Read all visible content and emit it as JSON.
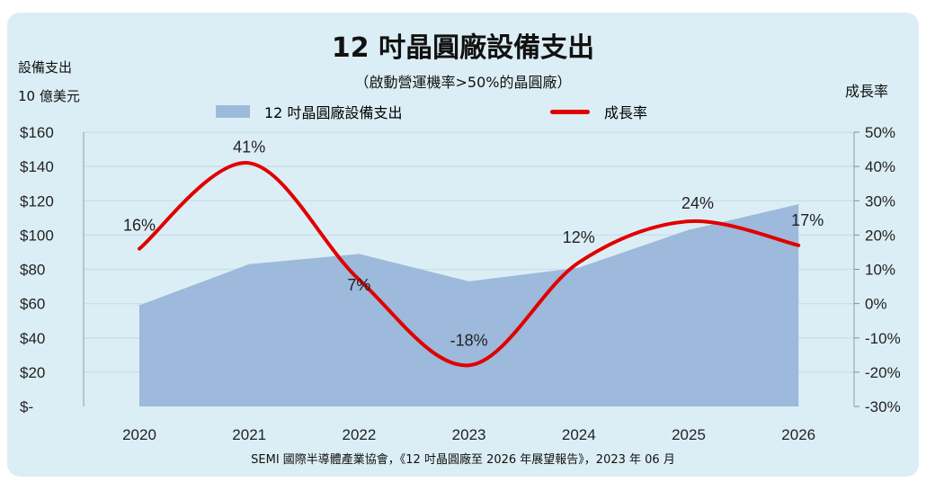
{
  "chart_data": {
    "type": "area+line",
    "title": "12 吋晶圓廠設備支出",
    "subtitle": "（啟動營運機率>50%的晶圓廠）",
    "ylabel_left": [
      "設備支出",
      "10 億美元"
    ],
    "ylabel_right": "成長率",
    "categories": [
      "2020",
      "2021",
      "2022",
      "2023",
      "2024",
      "2025",
      "2026"
    ],
    "series": [
      {
        "name": "12 吋晶圓廠設備支出",
        "type": "area",
        "axis": "left",
        "color": "#9db9db",
        "values": [
          59,
          83,
          89,
          73,
          81,
          103,
          118
        ]
      },
      {
        "name": "成長率",
        "type": "line",
        "axis": "right",
        "color": "#e00000",
        "values": [
          16,
          41,
          7,
          -18,
          12,
          24,
          17
        ],
        "labels": [
          "16%",
          "41%",
          "7%",
          "-18%",
          "12%",
          "24%",
          "17%"
        ]
      }
    ],
    "left_axis": {
      "ylim": [
        0,
        160
      ],
      "ticks": [
        "$-",
        "$20",
        "$40",
        "$60",
        "$80",
        "$100",
        "$120",
        "$140",
        "$160"
      ]
    },
    "right_axis": {
      "ylim": [
        -30,
        50
      ],
      "ticks": [
        "-30%",
        "-20%",
        "-10%",
        "0%",
        "10%",
        "20%",
        "30%",
        "40%",
        "50%"
      ]
    },
    "grid": true,
    "legend": "top-center",
    "source": "SEMI 國際半導體產業協會，《12 吋晶圓廠至 2026 年展望報告》，2023 年 06 月"
  }
}
